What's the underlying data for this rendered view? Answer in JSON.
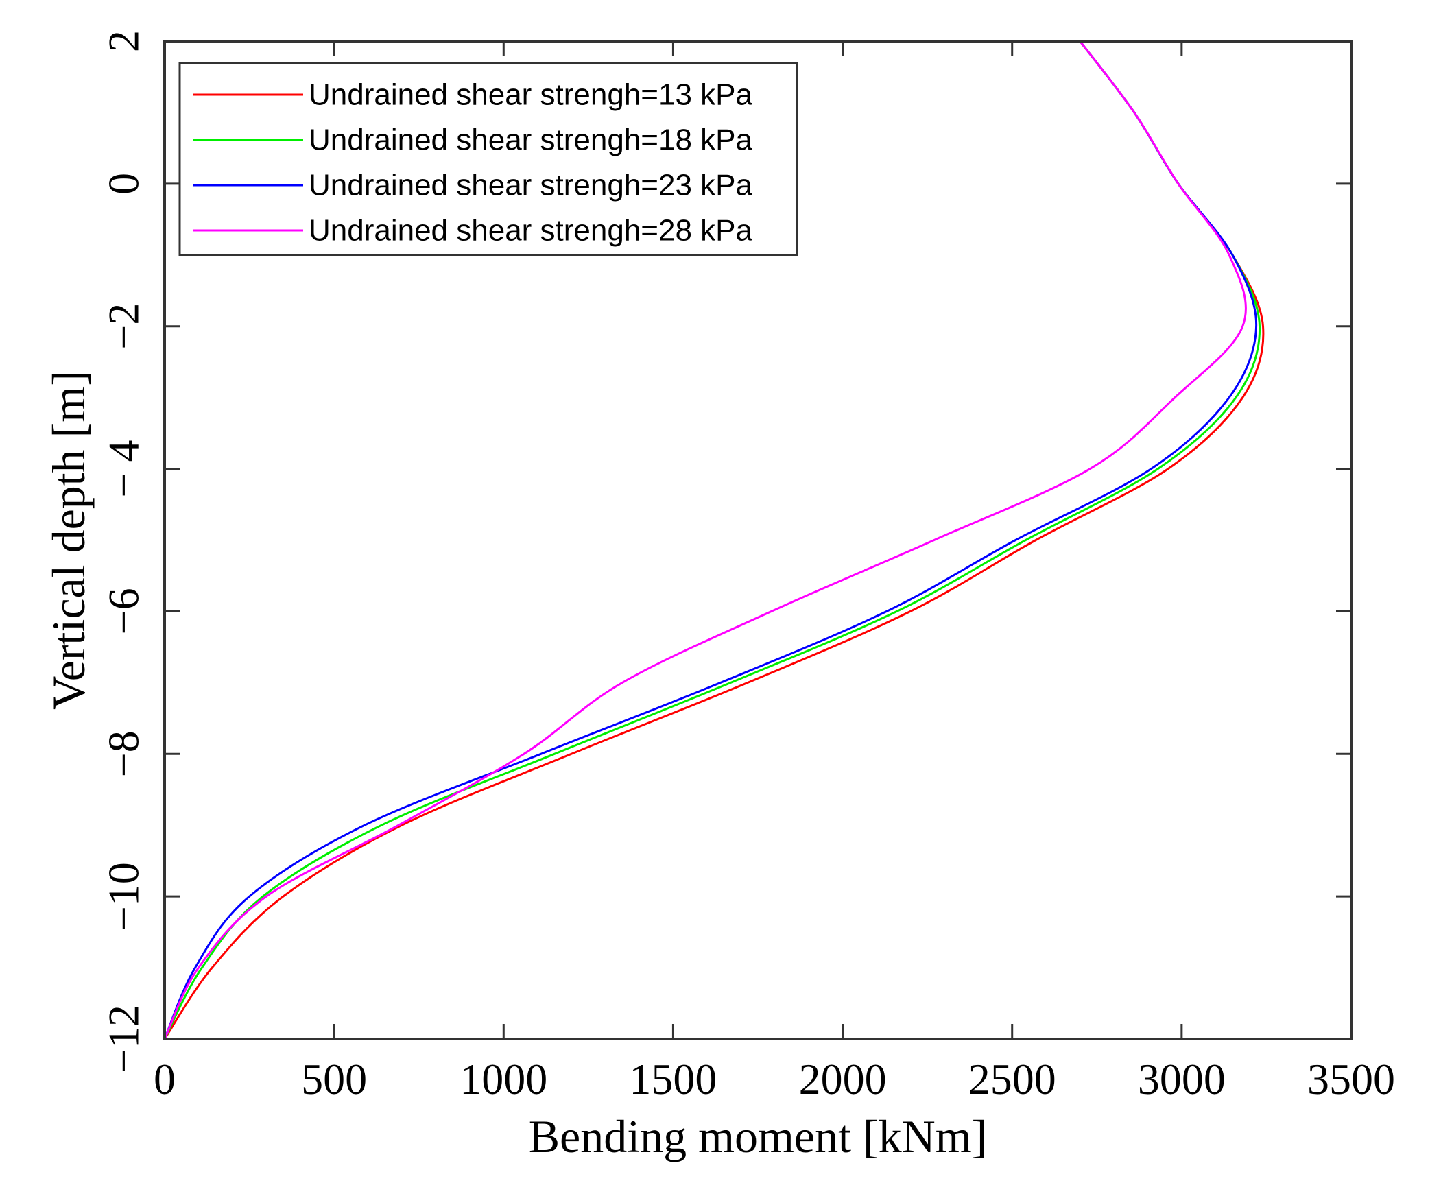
{
  "chart_data": {
    "type": "line",
    "title": "",
    "xlabel": "Bending moment [kNm]",
    "ylabel": "Vertical depth [m]",
    "xlim": [
      0,
      3500
    ],
    "ylim": [
      -12,
      2
    ],
    "xticks": [
      0,
      500,
      1000,
      1500,
      2000,
      2500,
      3000,
      3500
    ],
    "yticks": [
      2,
      0,
      -2,
      -4,
      -6,
      -8,
      -10,
      -12
    ],
    "ytick_labels": [
      "2",
      "0",
      "−2",
      "− 4",
      "−6",
      "−8",
      "−10",
      "−12"
    ],
    "grid": false,
    "legend_position": "top-left",
    "series": [
      {
        "name": "Undrained shear strengh=13 kPa",
        "color": "#ff0000",
        "points": [
          [
            2700,
            2
          ],
          [
            2860,
            1
          ],
          [
            2990,
            0
          ],
          [
            3150,
            -1
          ],
          [
            3240,
            -2
          ],
          [
            3180,
            -3
          ],
          [
            2960,
            -4
          ],
          [
            2570,
            -5
          ],
          [
            2200,
            -6
          ],
          [
            1720,
            -7
          ],
          [
            1200,
            -8
          ],
          [
            700,
            -9
          ],
          [
            350,
            -10
          ],
          [
            140,
            -11
          ],
          [
            0,
            -12
          ]
        ]
      },
      {
        "name": "Undrained shear strengh=18 kPa",
        "color": "#00ee00",
        "points": [
          [
            2700,
            2
          ],
          [
            2860,
            1
          ],
          [
            2990,
            0
          ],
          [
            3150,
            -1
          ],
          [
            3230,
            -2
          ],
          [
            3160,
            -3
          ],
          [
            2930,
            -4
          ],
          [
            2540,
            -5
          ],
          [
            2160,
            -6
          ],
          [
            1670,
            -7
          ],
          [
            1150,
            -8
          ],
          [
            640,
            -9
          ],
          [
            290,
            -10
          ],
          [
            110,
            -11
          ],
          [
            0,
            -12
          ]
        ]
      },
      {
        "name": "Undrained shear strengh=23 kPa",
        "color": "#0000ff",
        "points": [
          [
            2700,
            2
          ],
          [
            2860,
            1
          ],
          [
            2990,
            0
          ],
          [
            3150,
            -1
          ],
          [
            3220,
            -2
          ],
          [
            3140,
            -3
          ],
          [
            2910,
            -4
          ],
          [
            2510,
            -5
          ],
          [
            2130,
            -6
          ],
          [
            1640,
            -7
          ],
          [
            1110,
            -8
          ],
          [
            590,
            -9
          ],
          [
            250,
            -10
          ],
          [
            90,
            -11
          ],
          [
            0,
            -12
          ]
        ]
      },
      {
        "name": "Undrained shear strengh=28 kPa",
        "color": "#ff00ff",
        "points": [
          [
            2700,
            2
          ],
          [
            2860,
            1
          ],
          [
            2990,
            0
          ],
          [
            3140,
            -1
          ],
          [
            3180,
            -2
          ],
          [
            2980,
            -3
          ],
          [
            2730,
            -4
          ],
          [
            2270,
            -5
          ],
          [
            1790,
            -6
          ],
          [
            1350,
            -7
          ],
          [
            1060,
            -8
          ],
          [
            690,
            -9
          ],
          [
            300,
            -10
          ],
          [
            100,
            -11
          ],
          [
            0,
            -12
          ]
        ]
      }
    ]
  }
}
